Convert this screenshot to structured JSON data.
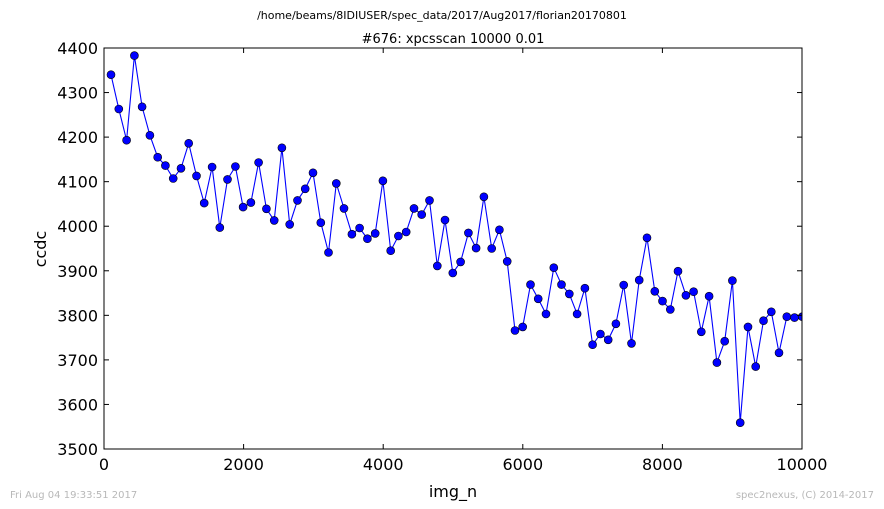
{
  "suptitle": "/home/beams/8IDIUSER/spec_data/2017/Aug2017/florian20170801",
  "footer": {
    "timestamp": "Fri Aug 04 19:33:51 2017",
    "credit": "spec2nexus, (C) 2014-2017"
  },
  "chart_data": {
    "type": "line",
    "title": "#676: xpcsscan 10000 0.01",
    "xlabel": "img_n",
    "ylabel": "ccdc",
    "xlim": [
      0,
      10000
    ],
    "ylim": [
      3500,
      4400
    ],
    "xticks": [
      0,
      2000,
      4000,
      6000,
      8000,
      10000
    ],
    "yticks": [
      3500,
      3600,
      3700,
      3800,
      3900,
      4000,
      4100,
      4200,
      4300,
      4400
    ],
    "grid": false,
    "legend": "none",
    "color": "#0000ff",
    "marker": "circle",
    "series": [
      {
        "x": [
          101,
          212,
          324,
          435,
          546,
          658,
          769,
          880,
          991,
          1103,
          1214,
          1325,
          1436,
          1548,
          1659,
          1770,
          1882,
          1993,
          2104,
          2215,
          2327,
          2438,
          2549,
          2660,
          2772,
          2883,
          2994,
          3106,
          3217,
          3328,
          3439,
          3551,
          3662,
          3773,
          3885,
          3996,
          4107,
          4218,
          4330,
          4441,
          4552,
          4663,
          4775,
          4886,
          4997,
          5109,
          5220,
          5331,
          5442,
          5554,
          5665,
          5776,
          5888,
          5999,
          6110,
          6221,
          6333,
          6444,
          6555,
          6666,
          6778,
          6889,
          7000,
          7112,
          7223,
          7334,
          7445,
          7557,
          7668,
          7779,
          7891,
          8002,
          8113,
          8224,
          8336,
          8447,
          8558,
          8669,
          8781,
          8892,
          9003,
          9115,
          9226,
          9337,
          9448,
          9560,
          9671,
          9782,
          9893,
          10004
        ],
        "y": [
          4340,
          4263,
          4193,
          4383,
          4268,
          4204,
          4155,
          4136,
          4107,
          4130,
          4186,
          4113,
          4052,
          4133,
          3997,
          4105,
          4134,
          4043,
          4053,
          4143,
          4039,
          4013,
          4176,
          4004,
          4058,
          4084,
          4120,
          4008,
          3941,
          4096,
          4040,
          3982,
          3996,
          3972,
          3984,
          4102,
          3945,
          3978,
          3987,
          4040,
          4026,
          4058,
          3911,
          4014,
          3895,
          3920,
          3985,
          3951,
          4066,
          3950,
          3992,
          3921,
          3766,
          3774,
          3869,
          3837,
          3803,
          3907,
          3869,
          3848,
          3803,
          3861,
          3734,
          3758,
          3745,
          3781,
          3868,
          3737,
          3879,
          3974,
          3854,
          3832,
          3813,
          3899,
          3845,
          3853,
          3763,
          3843,
          3694,
          3742,
          3878,
          3559,
          3774,
          3685,
          3788,
          3808,
          3716,
          3797,
          3795,
          3797
        ]
      }
    ]
  }
}
